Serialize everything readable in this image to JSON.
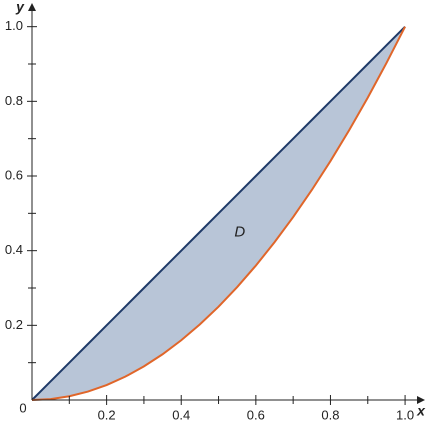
{
  "chart_data": {
    "type": "line",
    "x_label": "x",
    "y_label": "y",
    "x": [
      0,
      0.05,
      0.1,
      0.15,
      0.2,
      0.25,
      0.3,
      0.35,
      0.4,
      0.45,
      0.5,
      0.55,
      0.6,
      0.65,
      0.7,
      0.75,
      0.8,
      0.85,
      0.9,
      0.95,
      1
    ],
    "series": [
      {
        "color": "#1f3a68",
        "values": [
          0,
          0.05,
          0.1,
          0.15,
          0.2,
          0.25,
          0.3,
          0.35,
          0.4,
          0.45,
          0.5,
          0.55,
          0.6,
          0.65,
          0.7,
          0.75,
          0.8,
          0.85,
          0.9,
          0.95,
          1
        ]
      },
      {
        "color": "#e0662a",
        "values": [
          0,
          0.0025,
          0.01,
          0.0225,
          0.04,
          0.0625,
          0.09,
          0.1225,
          0.16,
          0.2025,
          0.25,
          0.3025,
          0.36,
          0.4225,
          0.49,
          0.5625,
          0.64,
          0.7225,
          0.81,
          0.9025,
          1
        ]
      }
    ],
    "fill_between": {
      "series": [
        0,
        1
      ],
      "color": "#b8c5d7"
    },
    "annotation": {
      "text": "D",
      "x": 0.557,
      "y": 0.448
    },
    "xlim": [
      0,
      1.04
    ],
    "ylim": [
      0,
      1.05
    ],
    "xticks": [
      0,
      0.2,
      0.4,
      0.6,
      0.8,
      {
        "value": 1,
        "label": "1.0"
      }
    ],
    "yticks": [
      0.2,
      0.4,
      0.6,
      0.8,
      {
        "value": 1,
        "label": "1.0"
      }
    ],
    "minor_xticks": [
      0.1,
      0.3,
      0.5,
      0.7,
      0.9
    ],
    "minor_yticks": [
      0.1,
      0.3,
      0.5,
      0.7,
      0.9
    ]
  }
}
